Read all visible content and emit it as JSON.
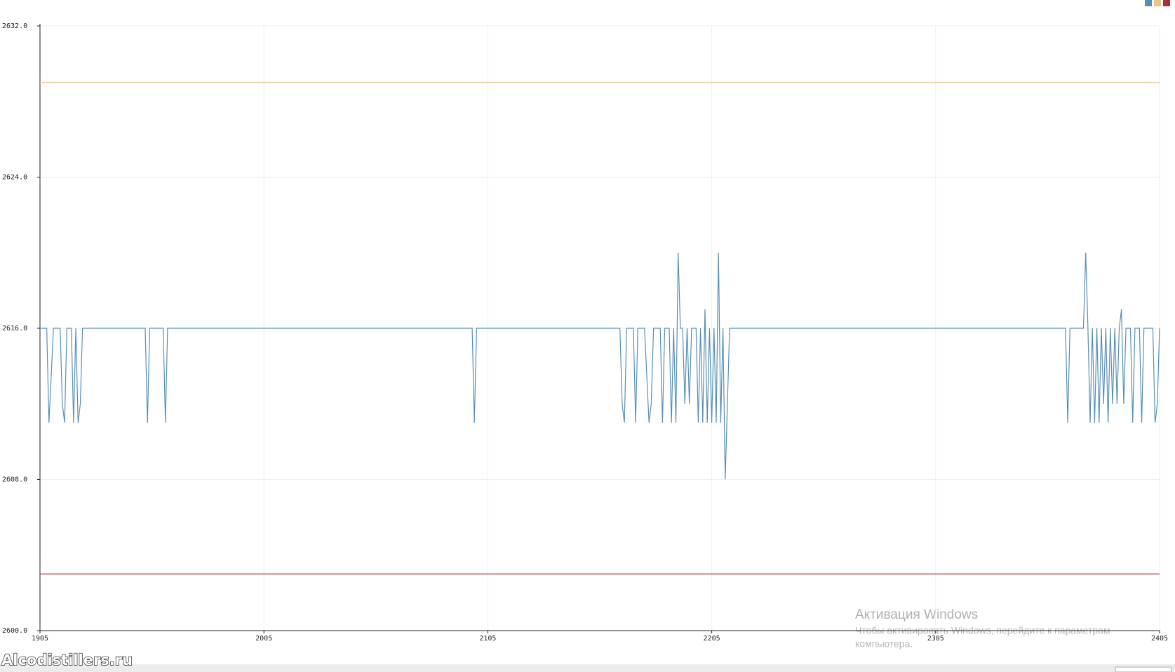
{
  "chart_data": {
    "type": "line",
    "xlim": [
      1905,
      2405
    ],
    "xticks": [
      1905,
      2005,
      2105,
      2205,
      2305,
      2405
    ],
    "ylim": [
      2600,
      2632
    ],
    "yticks": [
      {
        "value": 2600,
        "label": "2600.0"
      },
      {
        "value": 2608,
        "label": "2608.0"
      },
      {
        "value": 2616,
        "label": "2616.0"
      },
      {
        "value": 2624,
        "label": "2624.0"
      },
      {
        "value": 2632,
        "label": "2632.0"
      }
    ],
    "grid": true,
    "legend": "top-right",
    "series": [
      {
        "color": "#5a8fb4",
        "x": [
          1905,
          1908,
          1909,
          1911,
          1914,
          1915,
          1916,
          1917,
          1919,
          1920,
          1921,
          1922,
          1923,
          1924,
          1952,
          1953,
          1954,
          1960,
          1961,
          1962,
          2098,
          2099,
          2100,
          2164,
          2165,
          2166,
          2167,
          2170,
          2171,
          2172,
          2175,
          2177,
          2178,
          2179,
          2182,
          2183,
          2184,
          2186,
          2187,
          2188,
          2189,
          2190,
          2191,
          2192,
          2193,
          2194,
          2195,
          2196,
          2198,
          2199,
          2200,
          2201,
          2202,
          2203,
          2204,
          2205,
          2206,
          2207,
          2208,
          2209,
          2210,
          2211,
          2213,
          2363,
          2364,
          2365,
          2371,
          2372,
          2373,
          2374,
          2375,
          2376,
          2377,
          2378,
          2379,
          2380,
          2381,
          2382,
          2383,
          2384,
          2385,
          2386,
          2387,
          2388,
          2389,
          2390,
          2392,
          2393,
          2394,
          2396,
          2397,
          2398,
          2402,
          2403,
          2404,
          2405
        ],
        "values": [
          2616,
          2616,
          2611,
          2616,
          2616,
          2612,
          2611,
          2616,
          2616,
          2611,
          2616,
          2611,
          2612,
          2616,
          2616,
          2611,
          2616,
          2616,
          2611,
          2616,
          2616,
          2611,
          2616,
          2616,
          2612,
          2611,
          2616,
          2616,
          2611,
          2616,
          2616,
          2611,
          2612,
          2616,
          2616,
          2611,
          2616,
          2616,
          2611,
          2616,
          2611,
          2620,
          2616,
          2616,
          2612,
          2616,
          2612,
          2616,
          2616,
          2611,
          2616,
          2611,
          2617,
          2611,
          2616,
          2611,
          2616,
          2611,
          2620,
          2611,
          2616,
          2608,
          2616,
          2616,
          2611,
          2616,
          2616,
          2620,
          2616,
          2611,
          2616,
          2611,
          2616,
          2611,
          2616,
          2612,
          2616,
          2611,
          2616,
          2612,
          2616,
          2612,
          2616,
          2617,
          2612,
          2616,
          2616,
          2611,
          2616,
          2616,
          2611,
          2616,
          2616,
          2611,
          2612,
          2616
        ]
      },
      {
        "color": "#e9c48f",
        "x": [
          1905,
          2405
        ],
        "values": [
          2629,
          2629
        ]
      },
      {
        "color": "#a3323c",
        "x": [
          1905,
          2405
        ],
        "values": [
          2603,
          2603
        ]
      }
    ]
  },
  "watermark": "Alcodistillers.ru",
  "windows_title": "Активация Windows",
  "windows_text": [
    "Чтобы активировать Windows, перейдите к параметрам",
    "компьютера."
  ]
}
